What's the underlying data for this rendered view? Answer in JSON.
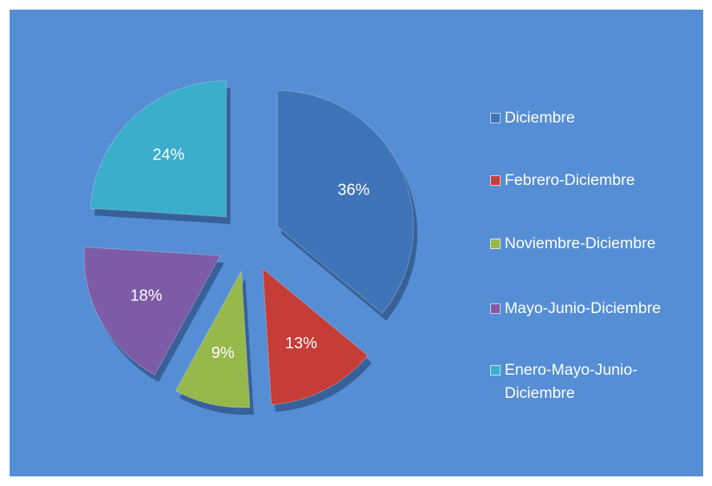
{
  "chart_data": {
    "type": "pie",
    "categories": [
      "Diciembre",
      "Febrero-Diciembre",
      "Noviembre-Diciembre",
      "Mayo-Junio-Diciembre",
      "Enero-Mayo-Junio-Diciembre"
    ],
    "values": [
      36,
      13,
      9,
      18,
      24
    ],
    "value_labels": [
      "36%",
      "13%",
      "9%",
      "18%",
      "24%"
    ],
    "colors": [
      "#3f74b8",
      "#c63c36",
      "#97b84a",
      "#7d5ba6",
      "#3aaecb"
    ],
    "legend": "right"
  }
}
